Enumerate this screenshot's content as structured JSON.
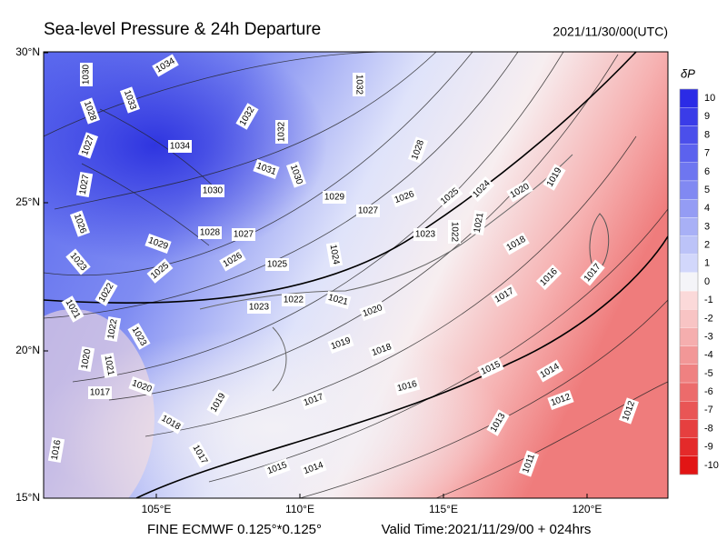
{
  "header": {
    "title": "Sea-level Pressure & 24h Departure",
    "valid_stamp": "2021/11/30/00(UTC)"
  },
  "footer": {
    "model": "FINE ECMWF 0.125°*0.125°",
    "valid_time": "Valid Time:2021/11/29/00 + 024hrs"
  },
  "map": {
    "x_ticks": [
      "105°E",
      "110°E",
      "115°E",
      "120°E"
    ],
    "y_ticks": [
      "30°N",
      "25°N",
      "20°N",
      "15°N"
    ],
    "contour_labels": [
      1034,
      1030,
      1033,
      1028,
      1032,
      1032,
      1032,
      1034,
      1027,
      1031,
      1030,
      1028,
      1027,
      1030,
      1029,
      1027,
      1026,
      1025,
      1024,
      1020,
      1019,
      1026,
      1028,
      1027,
      1029,
      1023,
      1022,
      1021,
      1018,
      1016,
      1017,
      1023,
      1024,
      1026,
      1025,
      1025,
      1022,
      1021,
      1022,
      1021,
      1023,
      1020,
      1017,
      1022,
      1023,
      1019,
      1018,
      1020,
      1021,
      1015,
      1014,
      1016,
      1017,
      1020,
      1019,
      1017,
      1012,
      1012,
      1013,
      1018,
      1016,
      1017,
      1015,
      1014,
      1011
    ]
  },
  "colorbar": {
    "label": "δP",
    "levels": [
      10,
      9,
      8,
      7,
      6,
      5,
      4,
      3,
      2,
      1,
      0,
      -1,
      -2,
      -3,
      -4,
      -5,
      -6,
      -7,
      -8,
      -9,
      -10
    ],
    "colors": [
      "#2b2be6",
      "#3a3ce8",
      "#4b4feb",
      "#5c62ee",
      "#6e76f0",
      "#8189f2",
      "#949cf4",
      "#a8b0f6",
      "#bcc3f8",
      "#d2d7fb",
      "#f4f4f8",
      "#fbd9d9",
      "#f8c4c4",
      "#f5aeae",
      "#f29797",
      "#ef8181",
      "#ec6b6b",
      "#e95555",
      "#e63f3f",
      "#e42a2a",
      "#e21515"
    ]
  }
}
